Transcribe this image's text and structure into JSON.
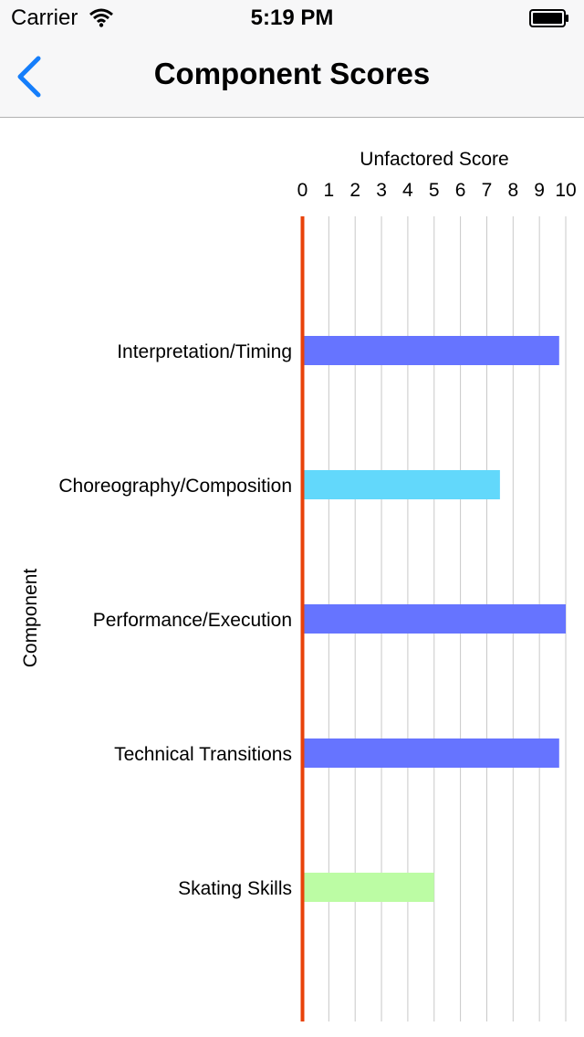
{
  "status_bar": {
    "carrier": "Carrier",
    "time": "5:19 PM",
    "wifi_icon": "wifi-icon",
    "battery_icon": "battery-icon"
  },
  "nav": {
    "back_icon": "chevron-left-icon",
    "title": "Component Scores",
    "accent_color": "#157efb"
  },
  "chart_data": {
    "type": "bar",
    "orientation": "horizontal",
    "title": "",
    "xlabel": "Unfactored Score",
    "ylabel": "Component",
    "xlim": [
      0,
      10
    ],
    "x_ticks": [
      "0",
      "1",
      "2",
      "3",
      "4",
      "5",
      "6",
      "7",
      "8",
      "9",
      "10"
    ],
    "grid": true,
    "axis_color": "#e8420a",
    "categories": [
      "Interpretation/Timing",
      "Choreography/Composition",
      "Performance/Execution",
      "Technical Transitions",
      "Skating Skills"
    ],
    "values": [
      9.75,
      7.5,
      10.0,
      9.75,
      5.0
    ],
    "bar_colors": [
      "#6674ff",
      "#62d8fb",
      "#6674ff",
      "#6674ff",
      "#bcfca4"
    ]
  }
}
